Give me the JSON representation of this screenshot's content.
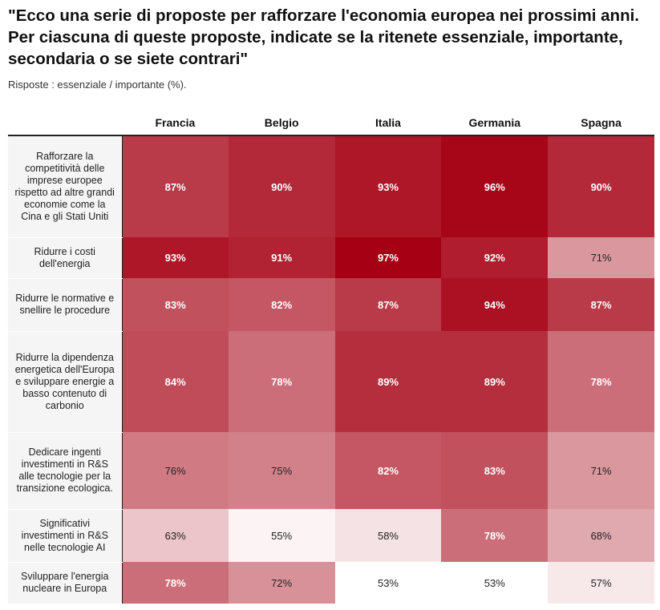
{
  "chart_data": {
    "type": "heatmap",
    "title": "\"Ecco una serie di proposte per rafforzare l'economia europea nei prossimi anni. Per ciascuna di queste proposte, indicate se la ritenete essenziale, importante, secondaria o se siete contrari\"",
    "subtitle": "Risposte : essenziale / importante (%).",
    "columns": [
      "Francia",
      "Belgio",
      "Italia",
      "Germania",
      "Spagna"
    ],
    "rows": [
      {
        "label": "Rafforzare la competitività delle imprese europee rispetto ad altre grandi economie come la Cina e gli Stati Uniti",
        "values": [
          87,
          90,
          93,
          96,
          90
        ]
      },
      {
        "label": "Ridurre i costi dell'energia",
        "values": [
          93,
          91,
          97,
          92,
          71
        ]
      },
      {
        "label": "Ridurre le normative e snellire le procedure",
        "values": [
          83,
          82,
          87,
          94,
          87
        ]
      },
      {
        "label": "Ridurre la dipendenza energetica dell'Europa e sviluppare energie a basso contenuto di carbonio",
        "values": [
          84,
          78,
          89,
          89,
          78
        ]
      },
      {
        "label": "Dedicare ingenti investimenti in R&S alle tecnologie per la transizione ecologica.",
        "values": [
          76,
          75,
          82,
          83,
          71
        ]
      },
      {
        "label": "Significativi investimenti in R&S nelle tecnologie AI",
        "values": [
          63,
          55,
          58,
          78,
          68
        ]
      },
      {
        "label": "Sviluppare l'energia nucleare in Europa",
        "values": [
          78,
          72,
          53,
          53,
          57
        ]
      }
    ],
    "value_suffix": "%",
    "color_scale": {
      "low": "#ffffff",
      "high": "#a50013",
      "min": 53,
      "max": 97
    }
  }
}
